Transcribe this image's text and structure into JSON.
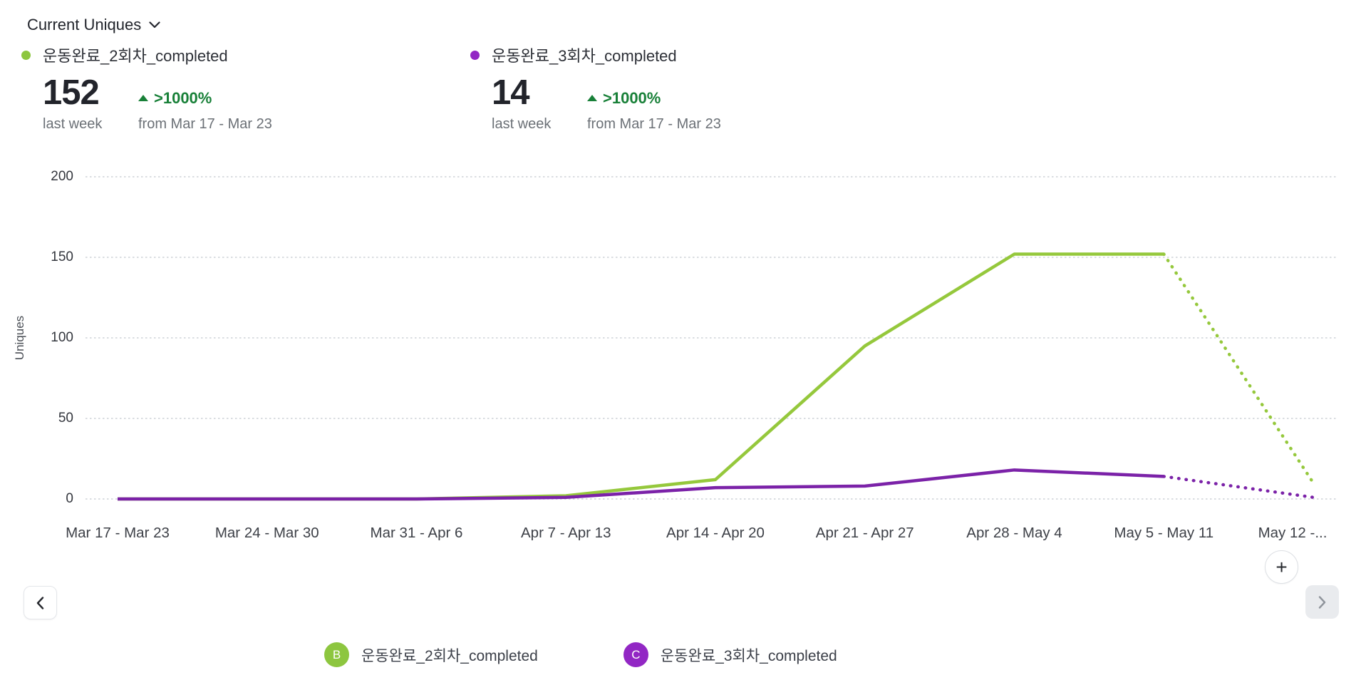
{
  "header": {
    "metric_selector_label": "Current Uniques"
  },
  "metrics": [
    {
      "name": "운동완료_2회차_completed",
      "value": "152",
      "period_label": "last week",
      "change": ">1000%",
      "compare_label": "from Mar 17 - Mar 23",
      "dot_color": "#8DC63F"
    },
    {
      "name": "운동완료_3회차_completed",
      "value": "14",
      "period_label": "last week",
      "change": ">1000%",
      "compare_label": "from Mar 17 - Mar 23",
      "dot_color": "#9227C4"
    }
  ],
  "chart_data": {
    "type": "line",
    "ylabel": "Uniques",
    "ylim": [
      0,
      200
    ],
    "y_ticks": [
      0,
      50,
      100,
      150,
      200
    ],
    "grid": "dotted-horizontal",
    "categories": [
      "Mar 17 - Mar 23",
      "Mar 24 - Mar 30",
      "Mar 31 - Apr 6",
      "Apr 7 - Apr 13",
      "Apr 14 - Apr 20",
      "Apr 21 - Apr 27",
      "Apr 28 - May 4",
      "May 5 - May 11",
      "May 12 -..."
    ],
    "series": [
      {
        "name": "운동완료_2회차_completed",
        "letter": "B",
        "color": "#95C83C",
        "values": [
          0,
          0,
          0,
          2,
          12,
          95,
          152,
          152,
          10
        ],
        "last_segment_style": "dotted"
      },
      {
        "name": "운동완료_3회차_completed",
        "letter": "C",
        "color": "#7B22A8",
        "values": [
          0,
          0,
          0,
          1,
          7,
          8,
          18,
          14,
          1
        ],
        "last_segment_style": "dotted"
      }
    ],
    "colors": {
      "grid": "#CDD2D7",
      "change_positive": "#188038"
    },
    "legend_position": "bottom"
  },
  "nav": {
    "prev": "‹",
    "next": "›",
    "add": "+"
  },
  "legend": [
    {
      "letter": "B",
      "label": "운동완료_2회차_completed",
      "color": "#8DC63F"
    },
    {
      "letter": "C",
      "label": "운동완료_3회차_completed",
      "color": "#9227C4"
    }
  ]
}
